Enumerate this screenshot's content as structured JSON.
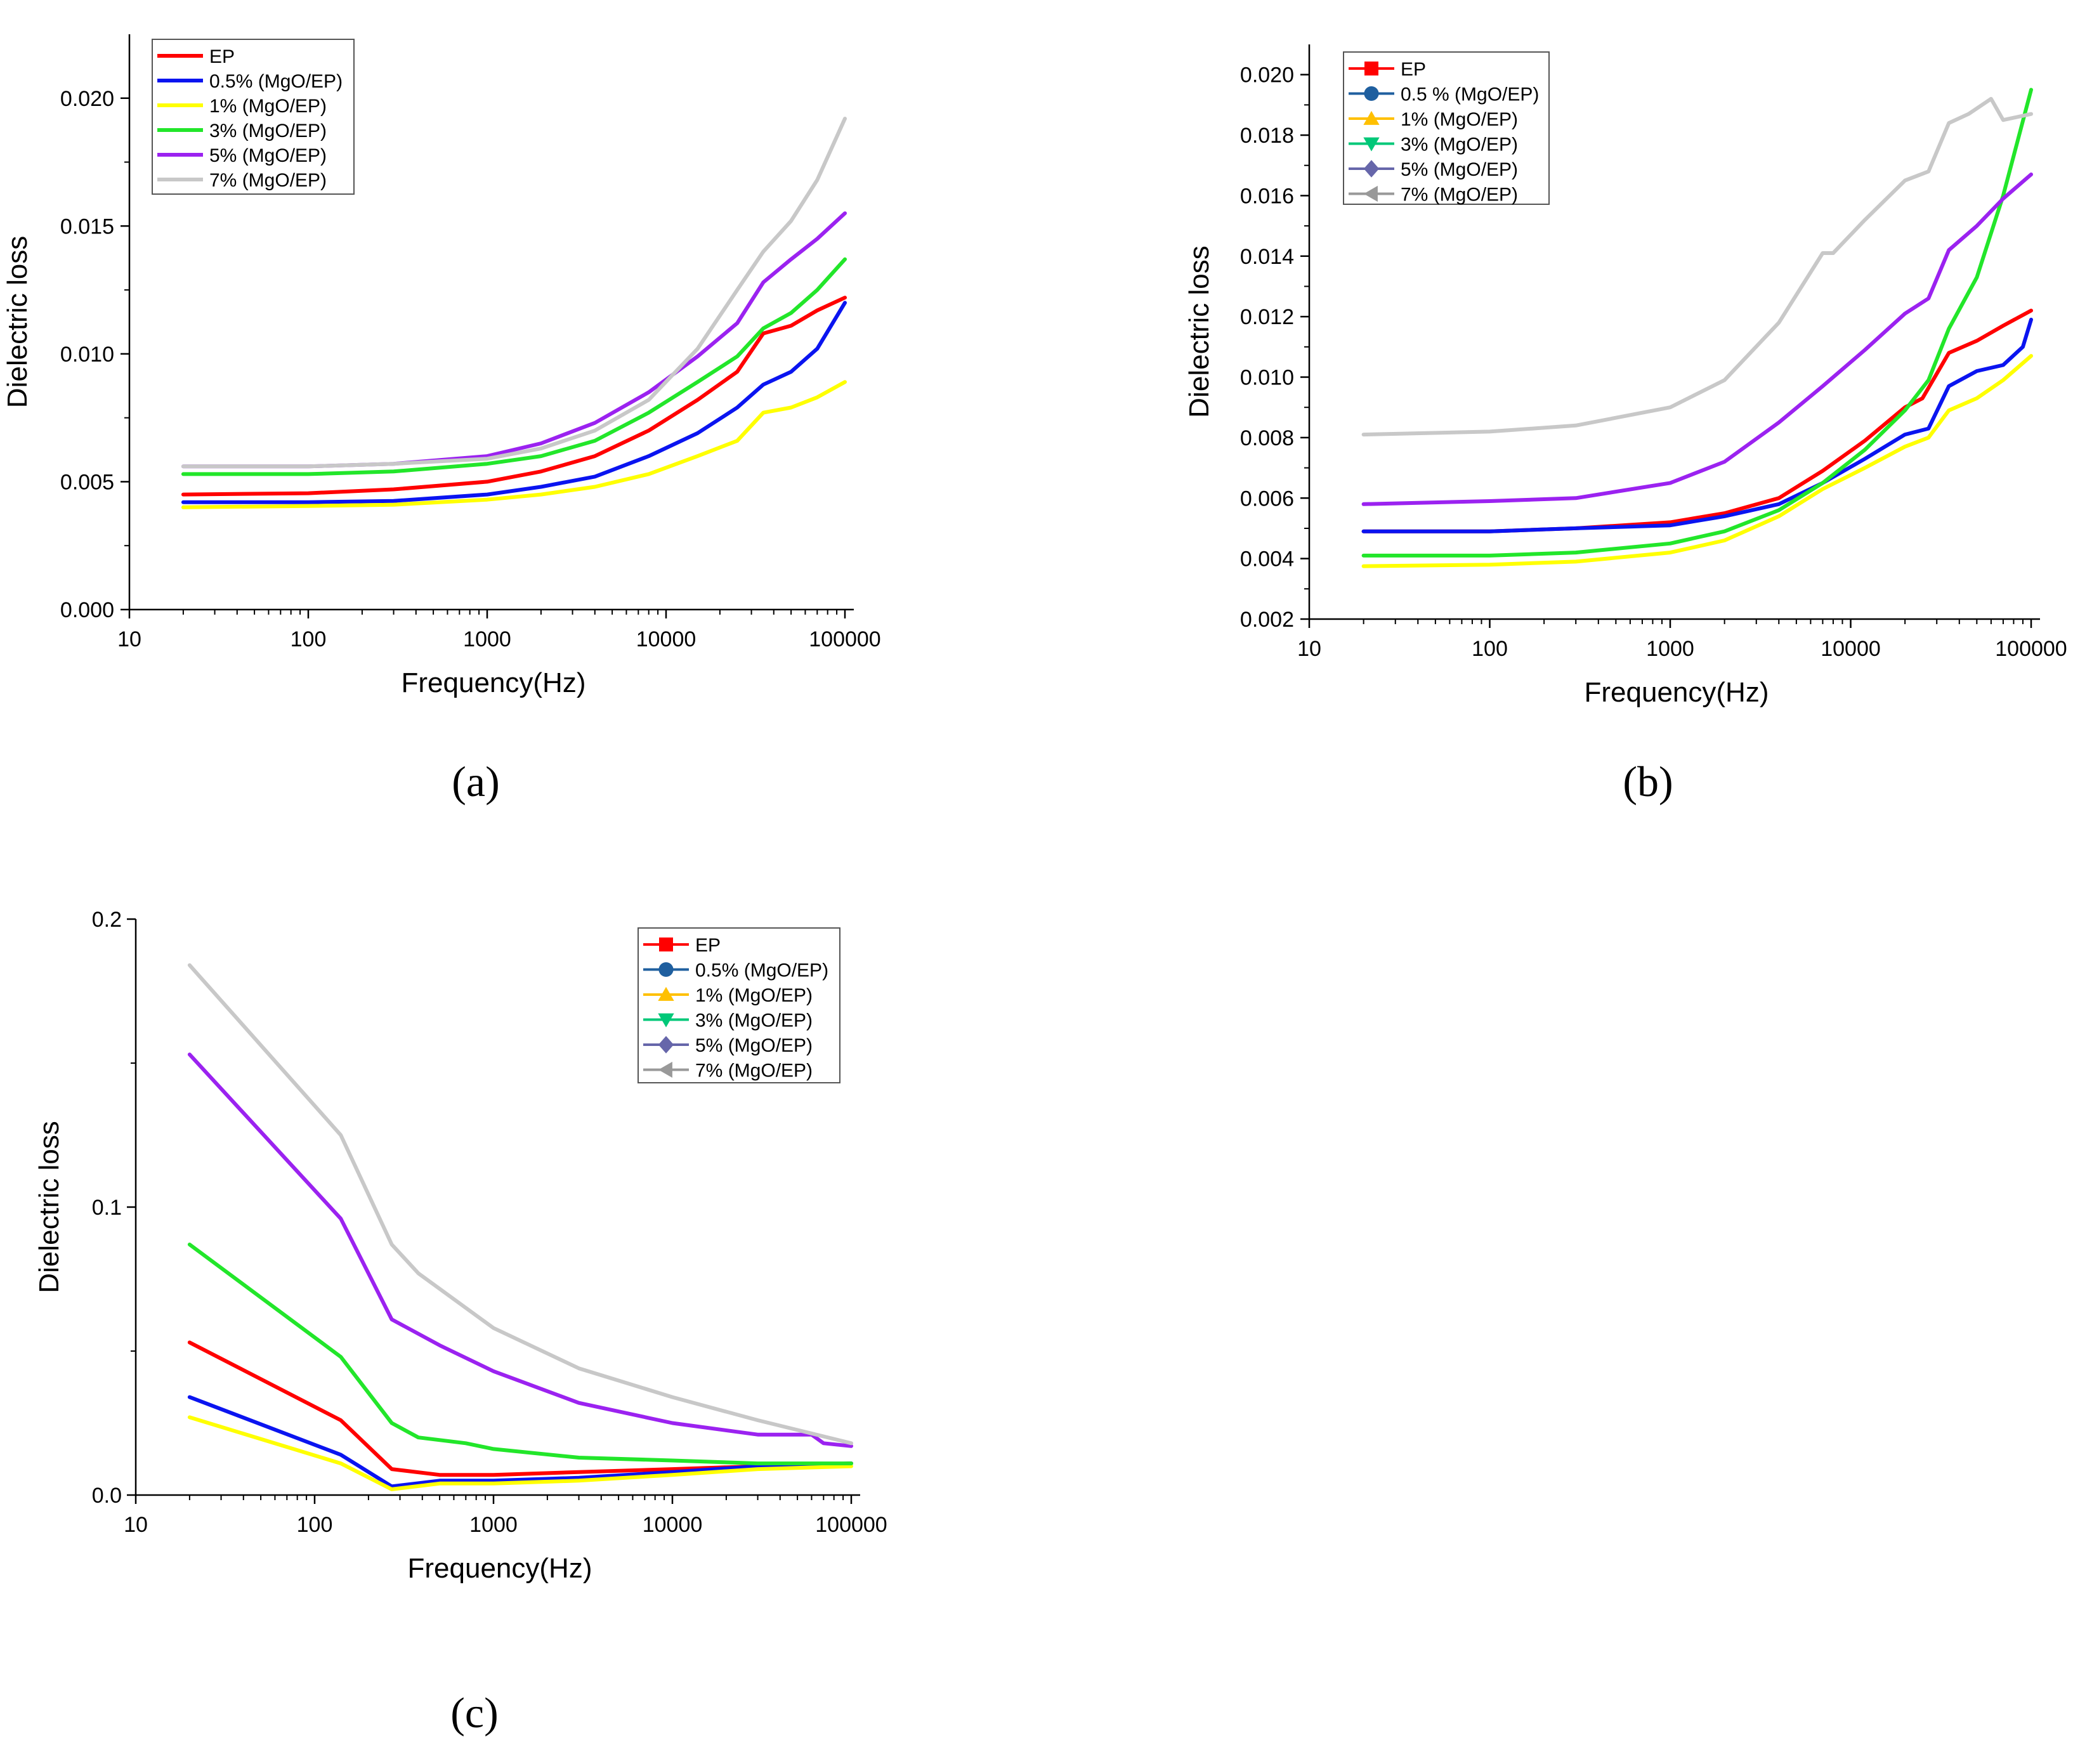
{
  "colors": {
    "EP": "#ff0000",
    "0.5%": "#0a14f0",
    "1%": "#ffff00",
    "3%": "#22e62a",
    "5%": "#9b22f0",
    "7%": "#c8c8c8",
    "legend_b_05": "#1f5f9f",
    "legend_b_1": "#ffc000",
    "legend_b_3": "#00c878",
    "legend_b_5": "#6666aa",
    "legend_b_7": "#999999"
  },
  "chart_data": [
    {
      "panel_label": "(a)",
      "type": "line",
      "xscale": "log",
      "xlabel": "Frequency(Hz)",
      "ylabel": "Dielectric loss",
      "xlim": [
        10,
        100000
      ],
      "ylim": [
        0,
        0.0225
      ],
      "xticks": [
        10,
        100,
        1000,
        10000,
        100000
      ],
      "xtick_labels": [
        "10",
        "100",
        "1000",
        "10000",
        "100000"
      ],
      "yticks": [
        0,
        0.005,
        0.01,
        0.015,
        0.02
      ],
      "ytick_labels": [
        "0.000",
        "0.005",
        "0.010",
        "0.015",
        "0.020"
      ],
      "legend_position": "top-left",
      "legend_markers": false,
      "series": [
        {
          "name": "EP",
          "color_key": "EP",
          "x": [
            20,
            100,
            300,
            1000,
            2000,
            4000,
            8000,
            15000,
            25000,
            35000,
            50000,
            70000,
            100000
          ],
          "y": [
            0.0045,
            0.00455,
            0.0047,
            0.005,
            0.0054,
            0.006,
            0.007,
            0.0082,
            0.0093,
            0.0108,
            0.0111,
            0.0117,
            0.0122
          ]
        },
        {
          "name": "0.5% (MgO/EP)",
          "color_key": "0.5%",
          "x": [
            20,
            100,
            300,
            1000,
            2000,
            4000,
            8000,
            15000,
            25000,
            35000,
            50000,
            70000,
            100000
          ],
          "y": [
            0.0042,
            0.0042,
            0.00425,
            0.0045,
            0.0048,
            0.0052,
            0.006,
            0.0069,
            0.0079,
            0.0088,
            0.0093,
            0.0102,
            0.012
          ]
        },
        {
          "name": "1% (MgO/EP)",
          "color_key": "1%",
          "x": [
            20,
            100,
            300,
            1000,
            2000,
            4000,
            8000,
            15000,
            25000,
            35000,
            50000,
            70000,
            100000
          ],
          "y": [
            0.004,
            0.00405,
            0.0041,
            0.0043,
            0.0045,
            0.0048,
            0.0053,
            0.006,
            0.0066,
            0.0077,
            0.0079,
            0.0083,
            0.0089
          ]
        },
        {
          "name": "3% (MgO/EP)",
          "color_key": "3%",
          "x": [
            20,
            100,
            300,
            1000,
            2000,
            4000,
            8000,
            15000,
            25000,
            35000,
            50000,
            70000,
            100000
          ],
          "y": [
            0.0053,
            0.0053,
            0.0054,
            0.0057,
            0.006,
            0.0066,
            0.0077,
            0.0089,
            0.0099,
            0.011,
            0.0116,
            0.0125,
            0.0137
          ]
        },
        {
          "name": "5% (MgO/EP)",
          "color_key": "5%",
          "x": [
            20,
            100,
            300,
            1000,
            2000,
            4000,
            8000,
            15000,
            25000,
            35000,
            50000,
            70000,
            100000
          ],
          "y": [
            0.0056,
            0.0056,
            0.0057,
            0.006,
            0.0065,
            0.0073,
            0.0085,
            0.0099,
            0.0112,
            0.0128,
            0.0137,
            0.0145,
            0.0155
          ]
        },
        {
          "name": "7% (MgO/EP)",
          "color_key": "7%",
          "x": [
            20,
            100,
            300,
            1000,
            2000,
            4000,
            8000,
            15000,
            25000,
            35000,
            50000,
            70000,
            100000
          ],
          "y": [
            0.0056,
            0.0056,
            0.0057,
            0.0059,
            0.0063,
            0.007,
            0.0082,
            0.0102,
            0.0125,
            0.014,
            0.0152,
            0.0168,
            0.0192
          ]
        }
      ]
    },
    {
      "panel_label": "(b)",
      "type": "line",
      "xscale": "log",
      "xlabel": "Frequency(Hz)",
      "ylabel": "Dielectric loss",
      "xlim": [
        10,
        100000
      ],
      "ylim": [
        0.002,
        0.021
      ],
      "xticks": [
        10,
        100,
        1000,
        10000,
        100000
      ],
      "xtick_labels": [
        "10",
        "100",
        "1000",
        "10000",
        "100000"
      ],
      "yticks": [
        0.002,
        0.004,
        0.006,
        0.008,
        0.01,
        0.012,
        0.014,
        0.016,
        0.018,
        0.02
      ],
      "ytick_labels": [
        "0.002",
        "0.004",
        "0.006",
        "0.008",
        "0.010",
        "0.012",
        "0.014",
        "0.016",
        "0.018",
        "0.020"
      ],
      "legend_position": "top-left",
      "legend_markers": true,
      "series": [
        {
          "name": "EP",
          "color_key": "EP",
          "legend_color_key": "EP",
          "marker": "square",
          "x": [
            20,
            100,
            300,
            1000,
            2000,
            4000,
            7000,
            12000,
            20000,
            25000,
            35000,
            50000,
            70000,
            100000
          ],
          "y": [
            0.0049,
            0.0049,
            0.005,
            0.0052,
            0.0055,
            0.006,
            0.0069,
            0.0079,
            0.009,
            0.0093,
            0.0108,
            0.0112,
            0.0117,
            0.0122
          ]
        },
        {
          "name": "0.5 % (MgO/EP)",
          "color_key": "0.5%",
          "legend_color_key": "legend_b_05",
          "marker": "circle",
          "x": [
            20,
            100,
            300,
            1000,
            2000,
            4000,
            7000,
            12000,
            20000,
            27000,
            35000,
            50000,
            70000,
            90000,
            100000
          ],
          "y": [
            0.0049,
            0.0049,
            0.005,
            0.0051,
            0.0054,
            0.0058,
            0.0065,
            0.0073,
            0.0081,
            0.0083,
            0.0097,
            0.0102,
            0.0104,
            0.011,
            0.0119
          ]
        },
        {
          "name": "1% (MgO/EP)",
          "color_key": "1%",
          "legend_color_key": "legend_b_1",
          "marker": "triangle-up",
          "x": [
            20,
            100,
            300,
            1000,
            2000,
            4000,
            7000,
            12000,
            20000,
            27000,
            35000,
            50000,
            70000,
            100000
          ],
          "y": [
            0.00375,
            0.0038,
            0.0039,
            0.0042,
            0.0046,
            0.0054,
            0.0063,
            0.007,
            0.0077,
            0.008,
            0.0089,
            0.0093,
            0.0099,
            0.0107
          ]
        },
        {
          "name": "3% (MgO/EP)",
          "color_key": "3%",
          "legend_color_key": "legend_b_3",
          "marker": "triangle-down",
          "x": [
            20,
            100,
            300,
            1000,
            2000,
            4000,
            7000,
            12000,
            20000,
            27000,
            35000,
            50000,
            70000,
            100000
          ],
          "y": [
            0.0041,
            0.0041,
            0.0042,
            0.0045,
            0.0049,
            0.0056,
            0.0065,
            0.0076,
            0.0089,
            0.0099,
            0.0116,
            0.0133,
            0.016,
            0.0195
          ]
        },
        {
          "name": "5% (MgO/EP)",
          "color_key": "5%",
          "legend_color_key": "legend_b_5",
          "marker": "diamond",
          "x": [
            20,
            100,
            300,
            1000,
            2000,
            4000,
            7000,
            12000,
            20000,
            27000,
            35000,
            50000,
            70000,
            100000
          ],
          "y": [
            0.0058,
            0.0059,
            0.006,
            0.0065,
            0.0072,
            0.0085,
            0.0097,
            0.0109,
            0.0121,
            0.0126,
            0.0142,
            0.015,
            0.0159,
            0.0167
          ]
        },
        {
          "name": "7% (MgO/EP)",
          "color_key": "7%",
          "legend_color_key": "legend_b_7",
          "marker": "triangle-left",
          "x": [
            20,
            100,
            300,
            1000,
            2000,
            4000,
            7000,
            8000,
            12000,
            20000,
            27000,
            35000,
            45000,
            60000,
            70000,
            100000
          ],
          "y": [
            0.0081,
            0.0082,
            0.0084,
            0.009,
            0.0099,
            0.0118,
            0.0141,
            0.0141,
            0.0152,
            0.0165,
            0.0168,
            0.0184,
            0.0187,
            0.0192,
            0.0185,
            0.0187
          ]
        }
      ]
    },
    {
      "panel_label": "(c)",
      "type": "line",
      "xscale": "log",
      "xlabel": "Frequency(Hz)",
      "ylabel": "Dielectric loss",
      "xlim": [
        10,
        100000
      ],
      "ylim": [
        0,
        0.2
      ],
      "xticks": [
        10,
        100,
        1000,
        10000,
        100000
      ],
      "xtick_labels": [
        "10",
        "100",
        "1000",
        "10000",
        "100000"
      ],
      "yticks": [
        0,
        0.1,
        0.2
      ],
      "ytick_labels": [
        "0.0",
        "0.1",
        "0.2"
      ],
      "legend_position": "top-right",
      "legend_markers": true,
      "series": [
        {
          "name": "EP",
          "color_key": "EP",
          "legend_color_key": "EP",
          "marker": "square",
          "x": [
            20,
            140,
            270,
            500,
            1000,
            3000,
            10000,
            30000,
            100000
          ],
          "y": [
            0.053,
            0.026,
            0.009,
            0.007,
            0.007,
            0.008,
            0.009,
            0.01,
            0.011
          ]
        },
        {
          "name": "0.5% (MgO/EP)",
          "color_key": "0.5%",
          "legend_color_key": "legend_b_05",
          "marker": "circle",
          "x": [
            20,
            140,
            270,
            500,
            1000,
            3000,
            10000,
            30000,
            100000
          ],
          "y": [
            0.034,
            0.014,
            0.003,
            0.005,
            0.005,
            0.006,
            0.008,
            0.01,
            0.011
          ]
        },
        {
          "name": "1% (MgO/EP)",
          "color_key": "1%",
          "legend_color_key": "legend_b_1",
          "marker": "triangle-up",
          "x": [
            20,
            140,
            270,
            500,
            1000,
            3000,
            10000,
            30000,
            100000
          ],
          "y": [
            0.027,
            0.011,
            0.002,
            0.004,
            0.004,
            0.005,
            0.007,
            0.009,
            0.01
          ]
        },
        {
          "name": "3% (MgO/EP)",
          "color_key": "3%",
          "legend_color_key": "legend_b_3",
          "marker": "triangle-down",
          "x": [
            20,
            140,
            270,
            380,
            700,
            1000,
            3000,
            10000,
            30000,
            100000
          ],
          "y": [
            0.087,
            0.048,
            0.025,
            0.02,
            0.018,
            0.016,
            0.013,
            0.012,
            0.011,
            0.011
          ]
        },
        {
          "name": "5% (MgO/EP)",
          "color_key": "5%",
          "legend_color_key": "legend_b_5",
          "marker": "diamond",
          "x": [
            20,
            140,
            270,
            500,
            1000,
            3000,
            10000,
            30000,
            60000,
            70000,
            100000
          ],
          "y": [
            0.153,
            0.096,
            0.061,
            0.052,
            0.043,
            0.032,
            0.025,
            0.021,
            0.021,
            0.018,
            0.017
          ]
        },
        {
          "name": "7% (MgO/EP)",
          "color_key": "7%",
          "legend_color_key": "legend_b_7",
          "marker": "triangle-left",
          "x": [
            20,
            140,
            270,
            380,
            1000,
            3000,
            10000,
            30000,
            100000
          ],
          "y": [
            0.184,
            0.125,
            0.087,
            0.077,
            0.058,
            0.044,
            0.034,
            0.026,
            0.018
          ]
        }
      ]
    }
  ]
}
